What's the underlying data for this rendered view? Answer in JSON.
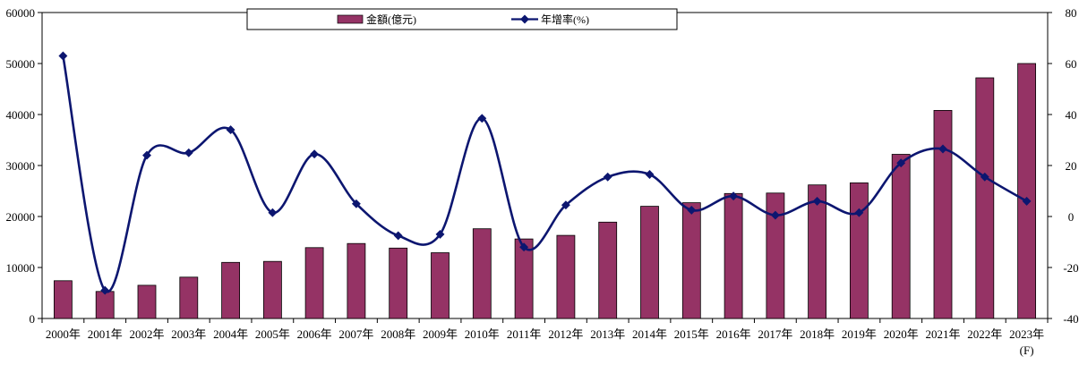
{
  "chart_data": {
    "type": "bar+line",
    "categories": [
      "2000年",
      "2001年",
      "2002年",
      "2003年",
      "2004年",
      "2005年",
      "2006年",
      "2007年",
      "2008年",
      "2009年",
      "2010年",
      "2011年",
      "2012年",
      "2013年",
      "2014年",
      "2015年",
      "2016年",
      "2017年",
      "2018年",
      "2019年",
      "2020年",
      "2021年",
      "2022年",
      "2023年"
    ],
    "forecast_note": "(F)",
    "series": [
      {
        "name": "金額(億元)",
        "type": "bar",
        "axis": "left",
        "color": "#953365",
        "values": [
          7400,
          5300,
          6500,
          8100,
          11000,
          11200,
          13900,
          14700,
          13800,
          12900,
          17600,
          15600,
          16300,
          18900,
          22000,
          22700,
          24500,
          24600,
          26200,
          26600,
          32200,
          40800,
          47200,
          50000
        ]
      },
      {
        "name": "年增率(%)",
        "type": "line",
        "axis": "right",
        "color": "#0c1670",
        "values": [
          63,
          -29,
          24,
          25,
          34,
          1.5,
          24.5,
          5,
          -7.5,
          -7,
          38.5,
          -12,
          4.5,
          15.5,
          16.5,
          2.5,
          8,
          0.5,
          6,
          1.5,
          21,
          26.5,
          15.5,
          6
        ]
      }
    ],
    "y_left": {
      "min": 0,
      "max": 60000,
      "ticks": [
        0,
        10000,
        20000,
        30000,
        40000,
        50000,
        60000
      ]
    },
    "y_right": {
      "min": -40,
      "max": 80,
      "ticks": [
        -40,
        -20,
        0,
        20,
        40,
        60,
        80
      ]
    },
    "legend_position": "top-center",
    "grid": false
  }
}
